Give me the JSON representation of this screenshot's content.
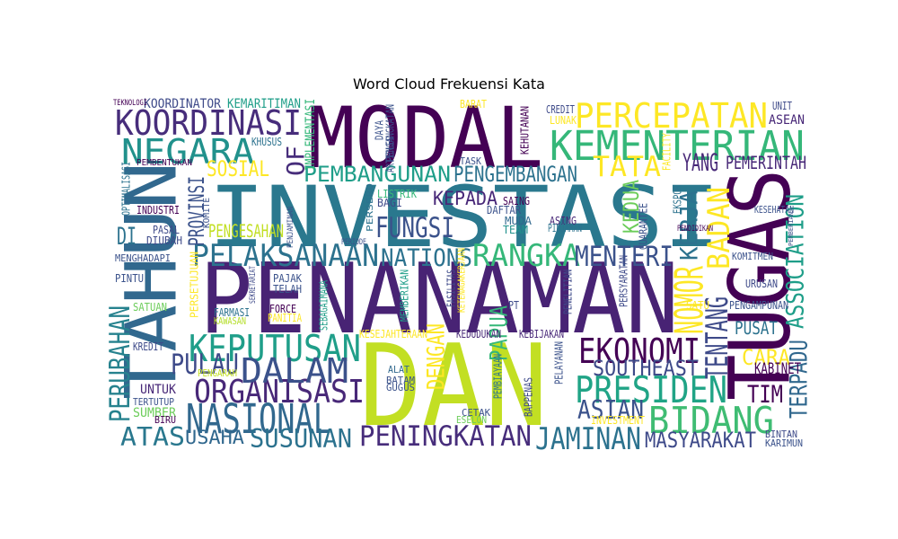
{
  "chart_data": {
    "type": "wordcloud",
    "title": "Word Cloud Frekuensi Kata",
    "colormap": "viridis",
    "background": "#ffffff",
    "words": [
      {
        "text": "MODAL",
        "color": "#440154"
      },
      {
        "text": "INVESTASI",
        "color": "#2a788e"
      },
      {
        "text": "PENANAMAN",
        "color": "#482374"
      },
      {
        "text": "DAN",
        "color": "#c2df23"
      },
      {
        "text": "TUGAS",
        "color": "#440154"
      },
      {
        "text": "TAHUN",
        "color": "#31688e"
      },
      {
        "text": "KEMENTERIAN",
        "color": "#35b779"
      },
      {
        "text": "PERCEPATAN",
        "color": "#fde725"
      },
      {
        "text": "KOORDINASI",
        "color": "#472d7b"
      },
      {
        "text": "NEGARA",
        "color": "#21918c"
      },
      {
        "text": "PELAKSANAAN",
        "color": "#2c728e"
      },
      {
        "text": "RANGKA",
        "color": "#35b779"
      },
      {
        "text": "MENTERI",
        "color": "#3b528b"
      },
      {
        "text": "NATIONS",
        "color": "#2c728e"
      },
      {
        "text": "KEPUTUSAN",
        "color": "#1f9e89"
      },
      {
        "text": "NASIONAL",
        "color": "#31688e"
      },
      {
        "text": "ORGANISASI",
        "color": "#482878"
      },
      {
        "text": "DALAM",
        "color": "#3b528b"
      },
      {
        "text": "PULAU",
        "color": "#3e4a89"
      },
      {
        "text": "PERUBAHAN",
        "color": "#26828e"
      },
      {
        "text": "PRESIDEN",
        "color": "#20a486"
      },
      {
        "text": "BIDANG",
        "color": "#3fbc73"
      },
      {
        "text": "EKONOMI",
        "color": "#440154"
      },
      {
        "text": "SOUTHEAST",
        "color": "#3e4a89"
      },
      {
        "text": "ASIAN",
        "color": "#3b528b"
      },
      {
        "text": "PENINGKATAN",
        "color": "#472d7b"
      },
      {
        "text": "JAMINAN",
        "color": "#2c728e"
      },
      {
        "text": "SUSUNAN",
        "color": "#2c728e"
      },
      {
        "text": "ATAS",
        "color": "#2a788e"
      },
      {
        "text": "USAHA",
        "color": "#31688e"
      },
      {
        "text": "MASYARAKAT",
        "color": "#3e4a89"
      },
      {
        "text": "TATA",
        "color": "#fde725"
      },
      {
        "text": "PEMBANGUNAN",
        "color": "#1f9e89"
      },
      {
        "text": "PENGEMBANGAN",
        "color": "#2c728e"
      },
      {
        "text": "FUNGSI",
        "color": "#3b528b"
      },
      {
        "text": "KEPADA",
        "color": "#482878"
      },
      {
        "text": "NOMOR",
        "color": "#fde725"
      },
      {
        "text": "BADAN",
        "color": "#fde725"
      },
      {
        "text": "KERJA",
        "color": "#2c728e"
      },
      {
        "text": "TENTANG",
        "color": "#3e4a89"
      },
      {
        "text": "YANG",
        "color": "#482878"
      },
      {
        "text": "PEMERINTAH",
        "color": "#482878"
      },
      {
        "text": "ASSOCIATION",
        "color": "#1f9e89"
      },
      {
        "text": "TERPADU",
        "color": "#31688e"
      },
      {
        "text": "CARA",
        "color": "#fde725"
      },
      {
        "text": "TIM",
        "color": "#440154"
      },
      {
        "text": "KABINET",
        "color": "#440154"
      },
      {
        "text": "PUSAT",
        "color": "#2c728e"
      },
      {
        "text": "KEDUA",
        "color": "#6ccd5a"
      },
      {
        "text": "PAPUA",
        "color": "#35b779"
      },
      {
        "text": "DENGAN",
        "color": "#fde725"
      },
      {
        "text": "SOSIAL",
        "color": "#fde725"
      },
      {
        "text": "OF",
        "color": "#472d7b"
      },
      {
        "text": "PROVINSI",
        "color": "#3b528b"
      },
      {
        "text": "DI",
        "color": "#2c728e"
      },
      {
        "text": "PENGESAHAN",
        "color": "#c2df23"
      },
      {
        "text": "KOORDINATOR",
        "color": "#3e4a89"
      },
      {
        "text": "KEMARITIMAN",
        "color": "#1f9e89"
      },
      {
        "text": "IMPLEMENTASI",
        "color": "#35b779"
      },
      {
        "text": "KHUSUS",
        "color": "#2c728e"
      },
      {
        "text": "SUMBER",
        "color": "#6ccd5a"
      },
      {
        "text": "UNTUK",
        "color": "#482878"
      },
      {
        "text": "KREDIT",
        "color": "#3e4a89"
      },
      {
        "text": "SATUAN",
        "color": "#6ccd5a"
      },
      {
        "text": "PINTU",
        "color": "#3b528b"
      },
      {
        "text": "MENGHADAPI",
        "color": "#3b528b"
      },
      {
        "text": "PASAL",
        "color": "#3e4a89"
      },
      {
        "text": "DIUBAH",
        "color": "#3e4a89"
      },
      {
        "text": "INDUSTRI",
        "color": "#440154"
      },
      {
        "text": "OPTIMALISASI",
        "color": "#2c728e"
      },
      {
        "text": "PERSETUJUAN",
        "color": "#fde725"
      },
      {
        "text": "KAWASAN",
        "color": "#b5de2b"
      },
      {
        "text": "FARMASI",
        "color": "#2c728e"
      },
      {
        "text": "FORCE",
        "color": "#440154"
      },
      {
        "text": "PANITIA",
        "color": "#fde725"
      },
      {
        "text": "PAJAK",
        "color": "#3b528b"
      },
      {
        "text": "TELAH",
        "color": "#3b528b"
      },
      {
        "text": "LISTRIK",
        "color": "#35b779"
      },
      {
        "text": "BAGI",
        "color": "#3e4a89"
      },
      {
        "text": "DAFTAR",
        "color": "#3b528b"
      },
      {
        "text": "MUDA",
        "color": "#31688e"
      },
      {
        "text": "TEAM",
        "color": "#21918c"
      },
      {
        "text": "ASING",
        "color": "#482878"
      },
      {
        "text": "PINJAMAN",
        "color": "#2c728e"
      },
      {
        "text": "KESEHATAN",
        "color": "#3b528b"
      },
      {
        "text": "KOMITMEN",
        "color": "#3b528b"
      },
      {
        "text": "URUSAN",
        "color": "#3e4a89"
      },
      {
        "text": "PENGAMPUNAN",
        "color": "#3b528b"
      },
      {
        "text": "SATU",
        "color": "#fde725"
      },
      {
        "text": "INVESTMENT",
        "color": "#fde725"
      },
      {
        "text": "BINTAN",
        "color": "#3e4a89"
      },
      {
        "text": "KARIMUN",
        "color": "#3b528b"
      },
      {
        "text": "ESELON",
        "color": "#6ccd5a"
      },
      {
        "text": "CETAK",
        "color": "#3b528b"
      },
      {
        "text": "GUGUS",
        "color": "#3b528b"
      },
      {
        "text": "BATAM",
        "color": "#3b528b"
      },
      {
        "text": "ALAT",
        "color": "#31688e"
      },
      {
        "text": "KEBIJAKAN",
        "color": "#482878"
      },
      {
        "text": "KESEJAHTERAAN",
        "color": "#fde725"
      },
      {
        "text": "KEDUDUKAN",
        "color": "#482878"
      },
      {
        "text": "PENGARAH",
        "color": "#c2df23"
      },
      {
        "text": "BIRU",
        "color": "#440154"
      },
      {
        "text": "TERTUTUP",
        "color": "#3b528b"
      },
      {
        "text": "PERSERO",
        "color": "#2c728e"
      },
      {
        "text": "PERIODE",
        "color": "#3b528b"
      },
      {
        "text": "SEKRETARIAT",
        "color": "#3e4a89"
      },
      {
        "text": "PENJAMINAN",
        "color": "#3b528b"
      },
      {
        "text": "SEBAGAIMANA",
        "color": "#1f9e89"
      },
      {
        "text": "MEMBERIKAN",
        "color": "#1f9e89"
      },
      {
        "text": "FASILITAS",
        "color": "#3e4a89"
      },
      {
        "text": "KETENAGAKERJAAN",
        "color": "#fde725"
      },
      {
        "text": "PT",
        "color": "#3e4a89"
      },
      {
        "text": "PENELITIAN",
        "color": "#3e4a89"
      },
      {
        "text": "PELAYANAN",
        "color": "#3b528b"
      },
      {
        "text": "PEMBIAYAAN",
        "color": "#2c728e"
      },
      {
        "text": "BAPPENAS",
        "color": "#3e4a89"
      },
      {
        "text": "PERSYARATAN",
        "color": "#3e4a89"
      },
      {
        "text": "GUARANTEE",
        "color": "#3b528b"
      },
      {
        "text": "EKSPOR",
        "color": "#2c728e"
      },
      {
        "text": "FACILITY",
        "color": "#fde725"
      },
      {
        "text": "CREDIT",
        "color": "#3e4a89"
      },
      {
        "text": "LUNAK",
        "color": "#fde725"
      },
      {
        "text": "UNIT",
        "color": "#3e4a89"
      },
      {
        "text": "ASEAN",
        "color": "#482878"
      },
      {
        "text": "PEMBERIAN",
        "color": "#3b528b"
      },
      {
        "text": "KEHUTANAN",
        "color": "#440154"
      },
      {
        "text": "PENGANGKATAN",
        "color": "#3b528b"
      },
      {
        "text": "DAYA",
        "color": "#3b528b"
      },
      {
        "text": "ARTICLES",
        "color": "#3b528b"
      },
      {
        "text": "TASK",
        "color": "#3b528b"
      },
      {
        "text": "SAING",
        "color": "#440154"
      },
      {
        "text": "BARAT",
        "color": "#fde725"
      },
      {
        "text": "KOMITE",
        "color": "#3b528b"
      },
      {
        "text": "PENDIDIKAN",
        "color": "#440154"
      },
      {
        "text": "PEMBENTUKAN",
        "color": "#440154"
      },
      {
        "text": "TEKNOLOGI",
        "color": "#440154"
      }
    ]
  }
}
